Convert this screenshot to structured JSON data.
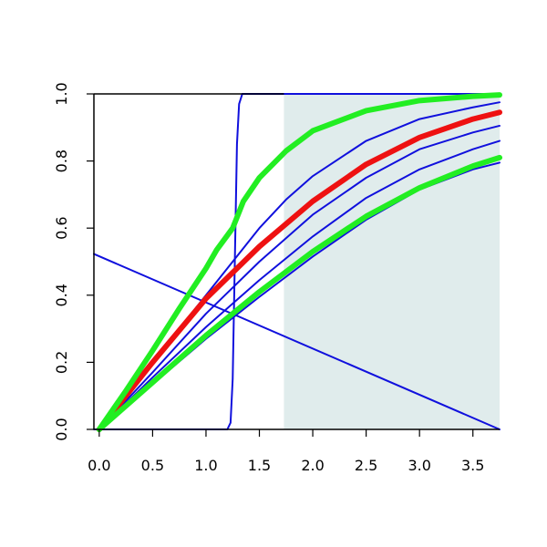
{
  "chart_data": {
    "type": "line",
    "title": "",
    "xlabel": "",
    "ylabel": "",
    "xlim": [
      -0.05,
      3.75
    ],
    "ylim": [
      0.0,
      1.0
    ],
    "x_ticks": [
      "0.0",
      "0.5",
      "1.0",
      "1.5",
      "2.0",
      "2.5",
      "3.0",
      "3.5"
    ],
    "y_ticks": [
      "0.0",
      "0.2",
      "0.4",
      "0.6",
      "0.8",
      "1.0"
    ],
    "grid": false,
    "shaded_region": {
      "x_from": 1.73,
      "x_to": 3.75,
      "color": "#e0ecec"
    },
    "colors": {
      "blue": "#1010dd",
      "red": "#ee1111",
      "green": "#22ee22",
      "axis": "#000000"
    },
    "series": [
      {
        "color": "blue",
        "width": 2,
        "points": [
          [
            -0.05,
            0.523
          ],
          [
            3.75,
            0.0
          ]
        ]
      },
      {
        "color": "blue",
        "width": 2,
        "points": [
          [
            -0.05,
            0.0
          ],
          [
            1.2,
            0.0
          ],
          [
            1.23,
            0.02
          ],
          [
            1.25,
            0.15
          ],
          [
            1.27,
            0.5
          ],
          [
            1.29,
            0.85
          ],
          [
            1.31,
            0.97
          ],
          [
            1.34,
            1.0
          ],
          [
            3.75,
            1.0
          ]
        ]
      },
      {
        "color": "blue",
        "width": 2,
        "points": [
          [
            0.0,
            0.0
          ],
          [
            0.25,
            0.1
          ],
          [
            0.5,
            0.2
          ],
          [
            0.75,
            0.3
          ],
          [
            1.0,
            0.4
          ],
          [
            1.25,
            0.5
          ],
          [
            1.5,
            0.6
          ],
          [
            1.75,
            0.685
          ],
          [
            2.0,
            0.755
          ],
          [
            2.5,
            0.86
          ],
          [
            3.0,
            0.925
          ],
          [
            3.5,
            0.96
          ],
          [
            3.75,
            0.975
          ]
        ]
      },
      {
        "color": "blue",
        "width": 2,
        "points": [
          [
            0.0,
            0.0
          ],
          [
            0.5,
            0.17
          ],
          [
            1.0,
            0.345
          ],
          [
            1.5,
            0.5
          ],
          [
            2.0,
            0.64
          ],
          [
            2.5,
            0.75
          ],
          [
            3.0,
            0.835
          ],
          [
            3.5,
            0.885
          ],
          [
            3.75,
            0.905
          ]
        ]
      },
      {
        "color": "blue",
        "width": 2,
        "points": [
          [
            0.0,
            0.0
          ],
          [
            0.5,
            0.155
          ],
          [
            1.0,
            0.305
          ],
          [
            1.5,
            0.445
          ],
          [
            2.0,
            0.575
          ],
          [
            2.5,
            0.69
          ],
          [
            3.0,
            0.775
          ],
          [
            3.5,
            0.835
          ],
          [
            3.75,
            0.86
          ]
        ]
      },
      {
        "color": "blue",
        "width": 2,
        "points": [
          [
            0.0,
            0.0
          ],
          [
            0.5,
            0.135
          ],
          [
            1.0,
            0.27
          ],
          [
            1.5,
            0.395
          ],
          [
            2.0,
            0.515
          ],
          [
            2.5,
            0.625
          ],
          [
            3.0,
            0.715
          ],
          [
            3.5,
            0.775
          ],
          [
            3.75,
            0.795
          ]
        ]
      },
      {
        "color": "red",
        "width": 6,
        "points": [
          [
            0.0,
            0.0
          ],
          [
            0.5,
            0.2
          ],
          [
            1.0,
            0.39
          ],
          [
            1.5,
            0.545
          ],
          [
            2.0,
            0.68
          ],
          [
            2.5,
            0.79
          ],
          [
            3.0,
            0.87
          ],
          [
            3.5,
            0.925
          ],
          [
            3.75,
            0.945
          ]
        ]
      },
      {
        "color": "green",
        "width": 6,
        "points": [
          [
            0.0,
            0.0
          ],
          [
            0.25,
            0.115
          ],
          [
            0.5,
            0.235
          ],
          [
            0.75,
            0.36
          ],
          [
            1.0,
            0.48
          ],
          [
            1.1,
            0.535
          ],
          [
            1.25,
            0.6
          ],
          [
            1.35,
            0.68
          ],
          [
            1.5,
            0.75
          ],
          [
            1.75,
            0.83
          ],
          [
            2.0,
            0.89
          ],
          [
            2.5,
            0.95
          ],
          [
            3.0,
            0.98
          ],
          [
            3.5,
            0.993
          ],
          [
            3.75,
            0.997
          ]
        ]
      },
      {
        "color": "green",
        "width": 6,
        "points": [
          [
            0.0,
            0.0
          ],
          [
            0.5,
            0.14
          ],
          [
            1.0,
            0.28
          ],
          [
            1.5,
            0.41
          ],
          [
            2.0,
            0.53
          ],
          [
            2.5,
            0.635
          ],
          [
            3.0,
            0.72
          ],
          [
            3.5,
            0.785
          ],
          [
            3.75,
            0.81
          ]
        ]
      }
    ]
  }
}
